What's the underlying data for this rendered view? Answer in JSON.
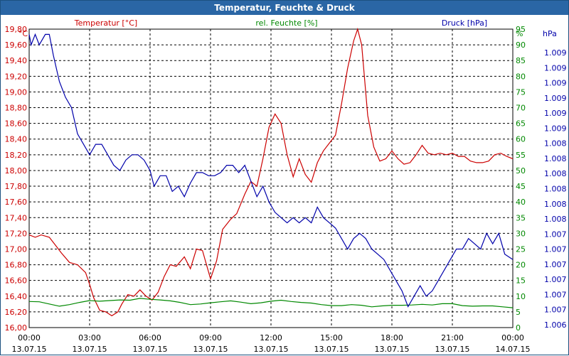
{
  "window": {
    "title": "Temperatur, Feuchte & Druck"
  },
  "chart_data": {
    "type": "line",
    "title": "Temperatur, Feuchte & Druck",
    "x_ticks": [
      "00:00",
      "03:00",
      "06:00",
      "09:00",
      "12:00",
      "15:00",
      "18:00",
      "21:00",
      "00:00"
    ],
    "x_dates": [
      "13.07.15",
      "13.07.15",
      "13.07.15",
      "13.07.15",
      "13.07.15",
      "13.07.15",
      "13.07.15",
      "13.07.15",
      "14.07.15"
    ],
    "x_range_hours": [
      0,
      24
    ],
    "grid": true,
    "axes": {
      "temperature": {
        "label": "Temperatur [°C]",
        "unit": "°C",
        "min": 16.0,
        "max": 19.8,
        "step": 0.2,
        "color": "#cc0000",
        "side": "left",
        "ticks": [
          "16,00",
          "16,20",
          "16,40",
          "16,60",
          "16,80",
          "17,00",
          "17,20",
          "17,40",
          "17,60",
          "17,80",
          "18,00",
          "18,20",
          "18,40",
          "18,60",
          "18,80",
          "19,00",
          "19,20",
          "19,40",
          "19,60",
          "19,80"
        ]
      },
      "humidity": {
        "label": "rel. Feuchte [%]",
        "unit": "%",
        "min": 0,
        "max": 95,
        "step": 5,
        "color": "#008800",
        "side": "right",
        "ticks": [
          "0",
          "5",
          "10",
          "15",
          "20",
          "25",
          "30",
          "35",
          "40",
          "45",
          "50",
          "55",
          "60",
          "65",
          "70",
          "75",
          "80",
          "85",
          "90",
          "95"
        ]
      },
      "pressure": {
        "label": "Druck [hPa]",
        "unit": "hPa",
        "min": 1006.4,
        "max": 1009.25,
        "color": "#0000aa",
        "side": "right",
        "ticks": [
          "1.006",
          "1.007",
          "1.007",
          "1.007",
          "1.007",
          "1.007",
          "1.007",
          "1.008",
          "1.008",
          "1.008",
          "1.008",
          "1.008",
          "1.008",
          "1.009",
          "1.009",
          "1.009",
          "1.009",
          "1.009",
          "1.009"
        ]
      }
    },
    "series": [
      {
        "name": "Temperatur [°C]",
        "axis": "temperature",
        "color": "#cc0000",
        "points": [
          [
            0,
            17.18
          ],
          [
            0.3,
            17.15
          ],
          [
            0.6,
            17.18
          ],
          [
            1.0,
            17.15
          ],
          [
            1.3,
            17.05
          ],
          [
            1.6,
            16.95
          ],
          [
            2.0,
            16.83
          ],
          [
            2.4,
            16.8
          ],
          [
            2.8,
            16.7
          ],
          [
            3.0,
            16.55
          ],
          [
            3.2,
            16.38
          ],
          [
            3.5,
            16.22
          ],
          [
            3.8,
            16.2
          ],
          [
            4.1,
            16.15
          ],
          [
            4.4,
            16.2
          ],
          [
            4.6,
            16.3
          ],
          [
            4.9,
            16.42
          ],
          [
            5.2,
            16.4
          ],
          [
            5.5,
            16.48
          ],
          [
            5.8,
            16.4
          ],
          [
            6.1,
            16.35
          ],
          [
            6.4,
            16.45
          ],
          [
            6.7,
            16.65
          ],
          [
            7.0,
            16.8
          ],
          [
            7.3,
            16.78
          ],
          [
            7.7,
            16.9
          ],
          [
            8.0,
            16.75
          ],
          [
            8.3,
            17.0
          ],
          [
            8.6,
            16.98
          ],
          [
            9.0,
            16.62
          ],
          [
            9.3,
            16.85
          ],
          [
            9.6,
            17.25
          ],
          [
            10.0,
            17.38
          ],
          [
            10.3,
            17.45
          ],
          [
            10.7,
            17.7
          ],
          [
            11.0,
            17.86
          ],
          [
            11.3,
            17.8
          ],
          [
            11.6,
            18.15
          ],
          [
            11.9,
            18.55
          ],
          [
            12.2,
            18.72
          ],
          [
            12.5,
            18.6
          ],
          [
            12.8,
            18.2
          ],
          [
            13.1,
            17.92
          ],
          [
            13.4,
            18.15
          ],
          [
            13.7,
            17.95
          ],
          [
            14.0,
            17.85
          ],
          [
            14.3,
            18.1
          ],
          [
            14.6,
            18.25
          ],
          [
            14.9,
            18.35
          ],
          [
            15.2,
            18.45
          ],
          [
            15.5,
            18.85
          ],
          [
            15.8,
            19.3
          ],
          [
            16.1,
            19.65
          ],
          [
            16.3,
            19.8
          ],
          [
            16.5,
            19.6
          ],
          [
            16.8,
            18.7
          ],
          [
            17.1,
            18.3
          ],
          [
            17.4,
            18.12
          ],
          [
            17.7,
            18.15
          ],
          [
            18.0,
            18.25
          ],
          [
            18.3,
            18.15
          ],
          [
            18.6,
            18.08
          ],
          [
            18.9,
            18.1
          ],
          [
            19.2,
            18.2
          ],
          [
            19.5,
            18.32
          ],
          [
            19.8,
            18.22
          ],
          [
            20.1,
            18.2
          ],
          [
            20.4,
            18.22
          ],
          [
            20.7,
            18.2
          ],
          [
            21.0,
            18.22
          ],
          [
            21.3,
            18.18
          ],
          [
            21.6,
            18.18
          ],
          [
            21.9,
            18.12
          ],
          [
            22.2,
            18.1
          ],
          [
            22.5,
            18.1
          ],
          [
            22.8,
            18.12
          ],
          [
            23.1,
            18.2
          ],
          [
            23.4,
            18.22
          ],
          [
            23.7,
            18.18
          ],
          [
            24.0,
            18.15
          ]
        ]
      },
      {
        "name": "rel. Feuchte [%]",
        "axis": "humidity",
        "color": "#008800",
        "points": [
          [
            0,
            8.3
          ],
          [
            0.5,
            8.2
          ],
          [
            1.0,
            7.5
          ],
          [
            1.5,
            6.8
          ],
          [
            2.0,
            7.3
          ],
          [
            2.5,
            8.0
          ],
          [
            3.0,
            8.6
          ],
          [
            3.5,
            8.4
          ],
          [
            4.0,
            8.6
          ],
          [
            4.5,
            8.8
          ],
          [
            5.0,
            8.7
          ],
          [
            5.5,
            9.3
          ],
          [
            6.0,
            9.0
          ],
          [
            6.5,
            8.8
          ],
          [
            7.0,
            8.5
          ],
          [
            7.5,
            8.0
          ],
          [
            8.0,
            7.3
          ],
          [
            8.5,
            7.5
          ],
          [
            9.0,
            7.9
          ],
          [
            9.5,
            8.2
          ],
          [
            10.0,
            8.5
          ],
          [
            10.5,
            8.1
          ],
          [
            11.0,
            7.6
          ],
          [
            11.5,
            7.9
          ],
          [
            12.0,
            8.4
          ],
          [
            12.5,
            8.7
          ],
          [
            13.0,
            8.3
          ],
          [
            13.5,
            8.0
          ],
          [
            14.0,
            7.8
          ],
          [
            14.5,
            7.3
          ],
          [
            15.0,
            7.0
          ],
          [
            15.5,
            7.0
          ],
          [
            16.0,
            7.3
          ],
          [
            16.5,
            7.1
          ],
          [
            17.0,
            6.6
          ],
          [
            17.5,
            6.9
          ],
          [
            18.0,
            7.1
          ],
          [
            18.5,
            7.1
          ],
          [
            19.0,
            7.2
          ],
          [
            19.5,
            7.4
          ],
          [
            20.0,
            7.2
          ],
          [
            20.5,
            7.6
          ],
          [
            21.0,
            7.6
          ],
          [
            21.5,
            7.0
          ],
          [
            22.0,
            6.8
          ],
          [
            22.5,
            6.9
          ],
          [
            23.0,
            6.9
          ],
          [
            23.5,
            6.6
          ],
          [
            24.0,
            6.3
          ]
        ]
      },
      {
        "name": "Druck [hPa]",
        "axis": "pressure",
        "color": "#0000aa",
        "points": [
          [
            0,
            1009.2
          ],
          [
            0.1,
            1009.1
          ],
          [
            0.3,
            1009.2
          ],
          [
            0.5,
            1009.1
          ],
          [
            0.8,
            1009.2
          ],
          [
            1.0,
            1009.2
          ],
          [
            1.2,
            1009.0
          ],
          [
            1.5,
            1008.75
          ],
          [
            1.8,
            1008.6
          ],
          [
            2.1,
            1008.5
          ],
          [
            2.4,
            1008.25
          ],
          [
            2.7,
            1008.15
          ],
          [
            3.0,
            1008.05
          ],
          [
            3.3,
            1008.15
          ],
          [
            3.6,
            1008.15
          ],
          [
            3.9,
            1008.05
          ],
          [
            4.2,
            1007.95
          ],
          [
            4.5,
            1007.9
          ],
          [
            4.8,
            1008.0
          ],
          [
            5.1,
            1008.05
          ],
          [
            5.4,
            1008.05
          ],
          [
            5.7,
            1008.0
          ],
          [
            6.0,
            1007.9
          ],
          [
            6.2,
            1007.75
          ],
          [
            6.5,
            1007.85
          ],
          [
            6.8,
            1007.85
          ],
          [
            7.1,
            1007.7
          ],
          [
            7.4,
            1007.75
          ],
          [
            7.7,
            1007.65
          ],
          [
            8.0,
            1007.78
          ],
          [
            8.3,
            1007.88
          ],
          [
            8.6,
            1007.88
          ],
          [
            8.9,
            1007.85
          ],
          [
            9.2,
            1007.85
          ],
          [
            9.5,
            1007.88
          ],
          [
            9.8,
            1007.95
          ],
          [
            10.1,
            1007.95
          ],
          [
            10.4,
            1007.88
          ],
          [
            10.7,
            1007.95
          ],
          [
            11.0,
            1007.8
          ],
          [
            11.3,
            1007.65
          ],
          [
            11.6,
            1007.75
          ],
          [
            11.9,
            1007.6
          ],
          [
            12.2,
            1007.5
          ],
          [
            12.5,
            1007.45
          ],
          [
            12.8,
            1007.4
          ],
          [
            13.1,
            1007.45
          ],
          [
            13.4,
            1007.4
          ],
          [
            13.7,
            1007.45
          ],
          [
            14.0,
            1007.4
          ],
          [
            14.3,
            1007.55
          ],
          [
            14.6,
            1007.45
          ],
          [
            14.9,
            1007.4
          ],
          [
            15.2,
            1007.35
          ],
          [
            15.5,
            1007.25
          ],
          [
            15.8,
            1007.15
          ],
          [
            16.1,
            1007.25
          ],
          [
            16.4,
            1007.3
          ],
          [
            16.7,
            1007.25
          ],
          [
            17.0,
            1007.15
          ],
          [
            17.3,
            1007.1
          ],
          [
            17.6,
            1007.05
          ],
          [
            17.9,
            1006.95
          ],
          [
            18.2,
            1006.85
          ],
          [
            18.5,
            1006.75
          ],
          [
            18.8,
            1006.6
          ],
          [
            19.1,
            1006.7
          ],
          [
            19.4,
            1006.8
          ],
          [
            19.7,
            1006.7
          ],
          [
            20.0,
            1006.75
          ],
          [
            20.3,
            1006.85
          ],
          [
            20.6,
            1006.95
          ],
          [
            20.9,
            1007.05
          ],
          [
            21.2,
            1007.15
          ],
          [
            21.5,
            1007.15
          ],
          [
            21.8,
            1007.25
          ],
          [
            22.1,
            1007.2
          ],
          [
            22.4,
            1007.15
          ],
          [
            22.7,
            1007.3
          ],
          [
            23.0,
            1007.2
          ],
          [
            23.3,
            1007.3
          ],
          [
            23.6,
            1007.1
          ],
          [
            24.0,
            1007.05
          ]
        ]
      }
    ]
  }
}
